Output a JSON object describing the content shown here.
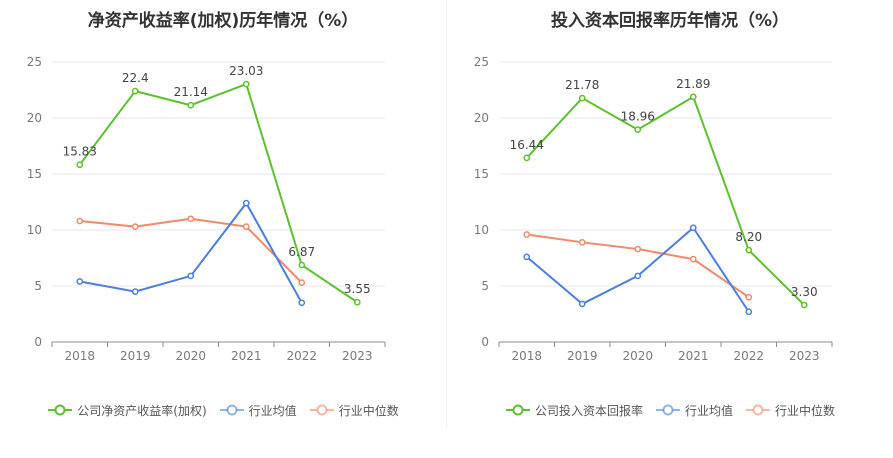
{
  "chart_data": [
    {
      "type": "line",
      "title": "净资产收益率(加权)历年情况（%）",
      "categories": [
        "2018",
        "2019",
        "2020",
        "2021",
        "2022",
        "2023"
      ],
      "yticks": [
        "0",
        "5",
        "10",
        "15",
        "20",
        "25"
      ],
      "ylim": [
        0,
        25
      ],
      "series": [
        {
          "name": "公司净资产收益率(加权)",
          "color": "#5cc22b",
          "values": [
            15.83,
            22.4,
            21.14,
            23.03,
            6.87,
            3.55
          ],
          "labels": [
            "15.83",
            "22.4",
            "21.14",
            "23.03",
            "6.87",
            "3.55"
          ]
        },
        {
          "name": "行业均值",
          "color": "#4a7ee0",
          "values": [
            5.4,
            4.5,
            5.9,
            12.4,
            3.5,
            null
          ]
        },
        {
          "name": "行业中位数",
          "color": "#f4896a",
          "values": [
            10.8,
            10.3,
            11.0,
            10.3,
            5.3,
            null
          ]
        }
      ]
    },
    {
      "type": "line",
      "title": "投入资本回报率历年情况（%）",
      "categories": [
        "2018",
        "2019",
        "2020",
        "2021",
        "2022",
        "2023"
      ],
      "yticks": [
        "0",
        "5",
        "10",
        "15",
        "20",
        "25"
      ],
      "ylim": [
        0,
        25
      ],
      "series": [
        {
          "name": "公司投入资本回报率",
          "color": "#5cc22b",
          "values": [
            16.44,
            21.78,
            18.96,
            21.89,
            8.2,
            3.3
          ],
          "labels": [
            "16.44",
            "21.78",
            "18.96",
            "21.89",
            "8.20",
            "3.30"
          ]
        },
        {
          "name": "行业均值",
          "color": "#4a7ee0",
          "values": [
            7.6,
            3.4,
            5.9,
            10.2,
            2.7,
            null
          ]
        },
        {
          "name": "行业中位数",
          "color": "#f4896a",
          "values": [
            9.6,
            8.9,
            8.3,
            7.4,
            4.0,
            null
          ]
        }
      ]
    }
  ]
}
